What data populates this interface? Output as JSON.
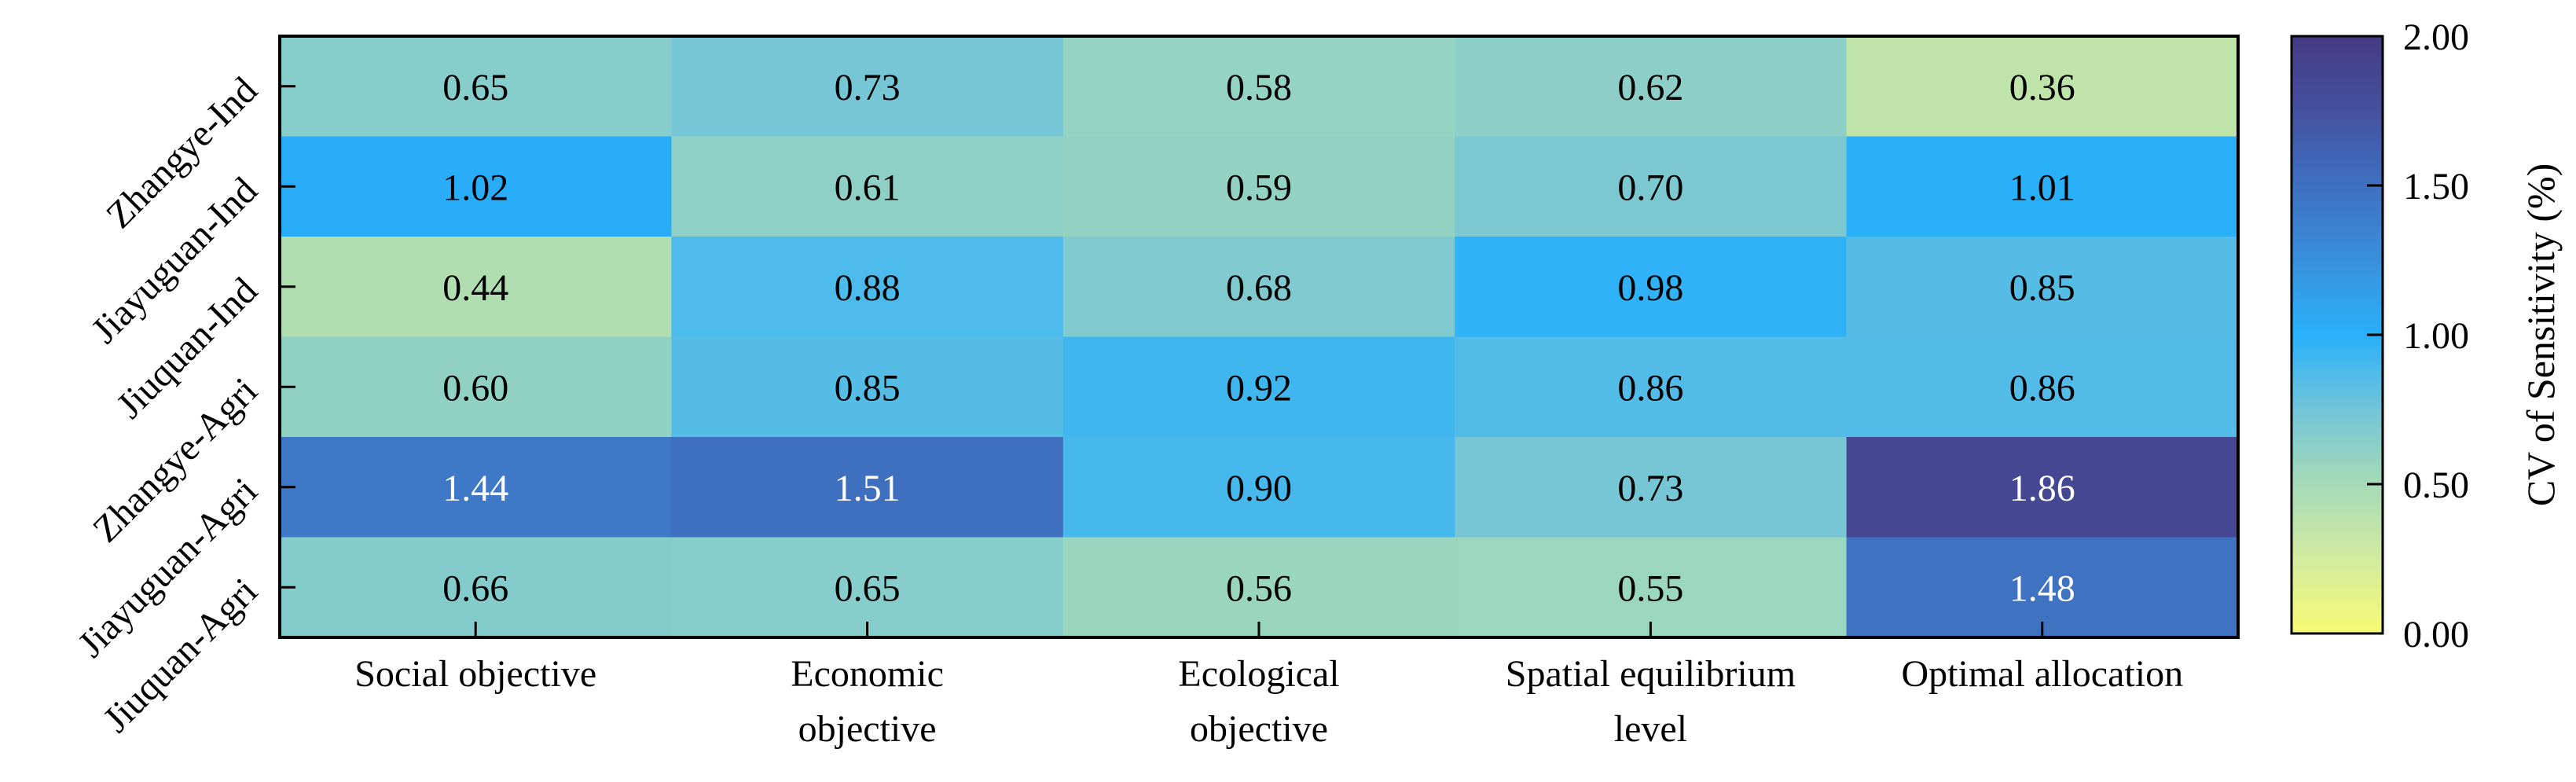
{
  "chart_data": {
    "type": "heatmap",
    "title": "",
    "xlabel": "",
    "ylabel": "",
    "x_categories": [
      [
        "Social objective"
      ],
      [
        "Economic",
        "objective"
      ],
      [
        "Ecological",
        "objective"
      ],
      [
        "Spatial equilibrium",
        "level"
      ],
      [
        "Optimal allocation"
      ]
    ],
    "y_categories": [
      "Zhangye-Ind",
      "Jiayuguan-Ind",
      "Jiuquan-Ind",
      "Zhangye-Agri",
      "Jiayuguan-Agri",
      "Jiuquan-Agri"
    ],
    "values": [
      [
        0.65,
        0.73,
        0.58,
        0.62,
        0.36
      ],
      [
        1.02,
        0.61,
        0.59,
        0.7,
        1.01
      ],
      [
        0.44,
        0.88,
        0.68,
        0.98,
        0.85
      ],
      [
        0.6,
        0.85,
        0.92,
        0.86,
        0.86
      ],
      [
        1.44,
        1.51,
        0.9,
        0.73,
        1.86
      ],
      [
        0.66,
        0.65,
        0.56,
        0.55,
        1.48
      ]
    ],
    "colorbar": {
      "label": "CV of Sensitivity (%)",
      "range": [
        0,
        2
      ],
      "ticks": [
        "0.00",
        "0.50",
        "1.00",
        "1.50",
        "2.00"
      ],
      "colormap": [
        [
          0.0,
          "#f8fa75"
        ],
        [
          0.25,
          "#d2eb9f"
        ],
        [
          0.5,
          "#a5dab7"
        ],
        [
          0.75,
          "#72c4d8"
        ],
        [
          1.0,
          "#29b0fa"
        ],
        [
          1.25,
          "#3a90dc"
        ],
        [
          1.5,
          "#3f70c0"
        ],
        [
          1.75,
          "#4451a0"
        ],
        [
          2.0,
          "#463a82"
        ]
      ]
    },
    "light_text_threshold": 1.3
  }
}
